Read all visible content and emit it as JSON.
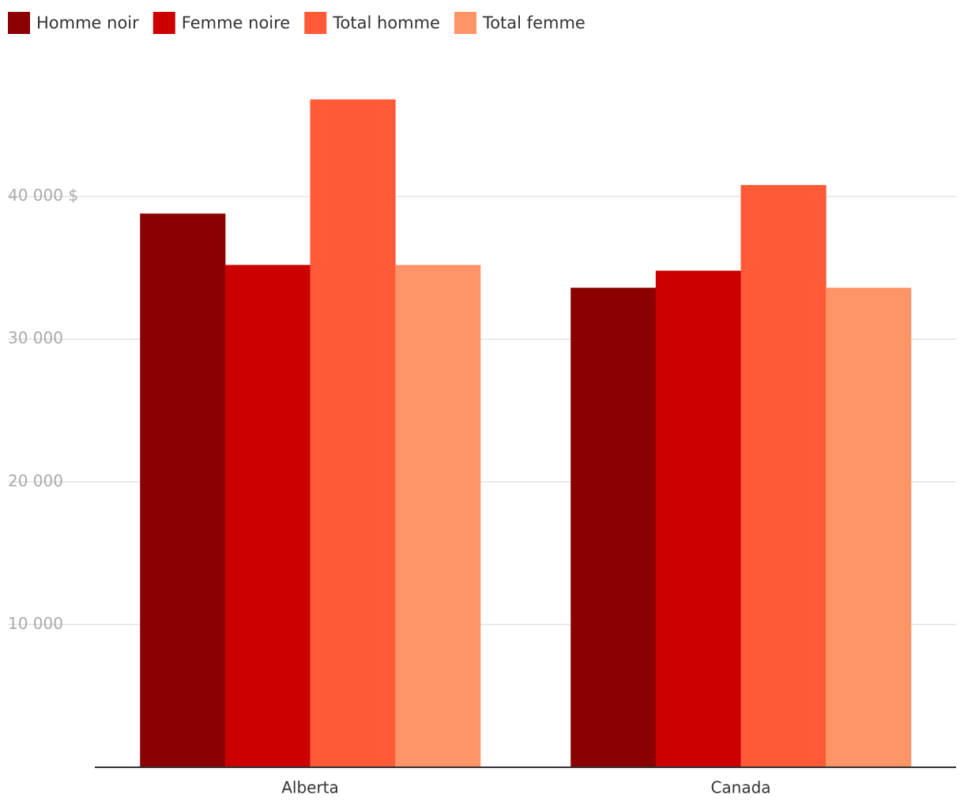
{
  "chart_data": {
    "type": "bar",
    "categories": [
      "Alberta",
      "Canada"
    ],
    "series": [
      {
        "name": "Homme noir",
        "color": "#8b0000",
        "values": [
          38800,
          33600
        ]
      },
      {
        "name": "Femme noire",
        "color": "#cc0000",
        "values": [
          35200,
          34800
        ]
      },
      {
        "name": "Total homme",
        "color": "#ff5a36",
        "values": [
          46800,
          40800
        ]
      },
      {
        "name": "Total femme",
        "color": "#ff9466",
        "values": [
          35200,
          33600
        ]
      }
    ],
    "ylim": [
      0,
      50000
    ],
    "yticks": [
      {
        "value": 10000,
        "label": "10 000"
      },
      {
        "value": 20000,
        "label": "20 000"
      },
      {
        "value": 30000,
        "label": "30 000"
      },
      {
        "value": 40000,
        "label": "40 000 $"
      }
    ],
    "grid": true,
    "legend": "top-left"
  }
}
